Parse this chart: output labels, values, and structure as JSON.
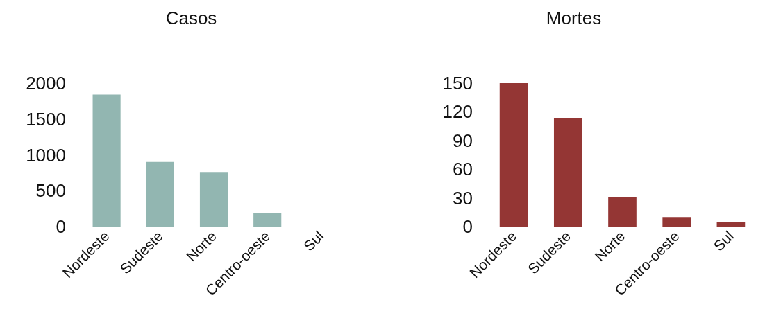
{
  "chart_data": [
    {
      "type": "bar",
      "title": "Casos",
      "categories": [
        "Nordeste",
        "Sudeste",
        "Norte",
        "Centro-oeste",
        "Sul"
      ],
      "values": [
        1840,
        900,
        760,
        190,
        0
      ],
      "color": "#92b6b1",
      "ylim": [
        0,
        2000
      ],
      "yticks": [
        0,
        500,
        1000,
        1500,
        2000
      ],
      "grid": false
    },
    {
      "type": "bar",
      "title": "Mortes",
      "categories": [
        "Nordeste",
        "Sudeste",
        "Norte",
        "Centro-oeste",
        "Sul"
      ],
      "values": [
        150,
        113,
        31,
        10,
        5
      ],
      "color": "#943634",
      "ylim": [
        0,
        150
      ],
      "yticks": [
        0,
        30,
        60,
        90,
        120,
        150
      ],
      "grid": false
    }
  ]
}
